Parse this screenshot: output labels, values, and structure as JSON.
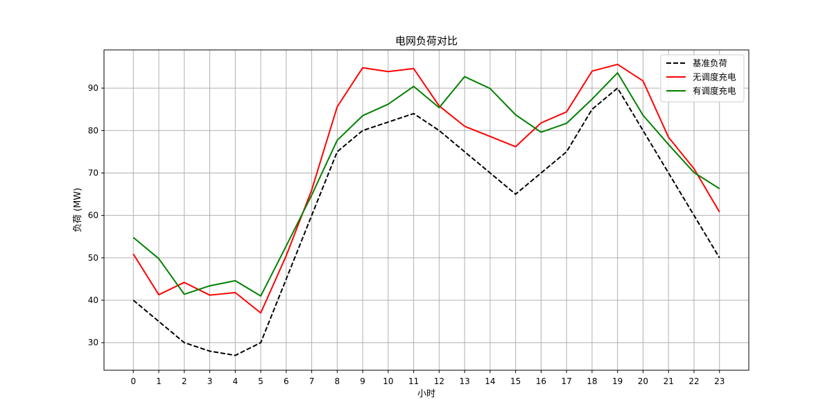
{
  "chart_data": {
    "type": "line",
    "title": "电网负荷对比",
    "xlabel": "小时",
    "ylabel": "负荷 (MW)",
    "x": [
      0,
      1,
      2,
      3,
      4,
      5,
      6,
      7,
      8,
      9,
      10,
      11,
      12,
      13,
      14,
      15,
      16,
      17,
      18,
      19,
      20,
      21,
      22,
      23
    ],
    "xlim": [
      -1.15,
      24.15
    ],
    "ylim": [
      23.5,
      99.0
    ],
    "yticks": [
      30,
      40,
      50,
      60,
      70,
      80,
      90
    ],
    "grid": true,
    "legend_position": "top-right",
    "series": [
      {
        "name": "基准负荷",
        "color": "#000000",
        "style": "dashed",
        "values": [
          40,
          35,
          30,
          28,
          27,
          30,
          45,
          60,
          75,
          80,
          82,
          84,
          80,
          75,
          70,
          65,
          70,
          75,
          85,
          90,
          80,
          70,
          60,
          50
        ]
      },
      {
        "name": "无调度充电",
        "color": "#ff0000",
        "style": "solid",
        "values": [
          50.9,
          41.3,
          44.2,
          41.2,
          41.8,
          37.0,
          50.5,
          66.0,
          85.6,
          94.8,
          93.9,
          94.6,
          85.8,
          81.0,
          78.6,
          76.2,
          81.8,
          84.4,
          94.0,
          95.6,
          91.7,
          78.4,
          71.0,
          60.8
        ]
      },
      {
        "name": "有调度充电",
        "color": "#008000",
        "style": "solid",
        "values": [
          54.8,
          49.8,
          41.4,
          43.4,
          44.6,
          41.0,
          52.8,
          64.8,
          77.7,
          83.5,
          86.2,
          90.4,
          85.4,
          92.7,
          89.9,
          83.7,
          79.6,
          81.7,
          87.4,
          93.6,
          83.6,
          76.7,
          70.1,
          66.3
        ]
      }
    ]
  }
}
